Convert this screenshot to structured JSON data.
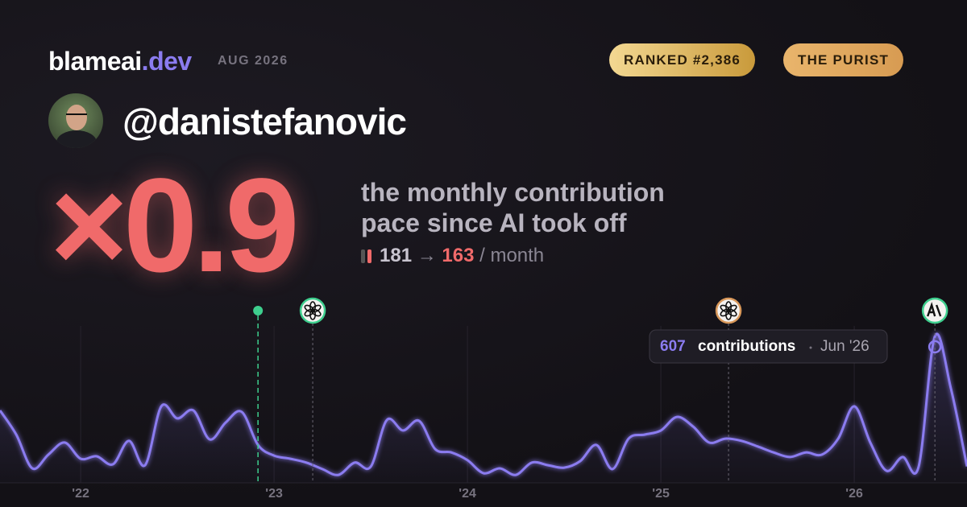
{
  "header": {
    "brand": "blameai",
    "brand_tld": ".dev",
    "period": "AUG 2026",
    "badges": [
      "RANKED #2,386",
      "THE PURIST"
    ],
    "username": "@danistefanovic"
  },
  "stats": {
    "multiplier": "×0.9",
    "description": [
      "the monthly contribution",
      "pace since AI took off"
    ],
    "before": 181,
    "arrow": "→",
    "after": 163,
    "unit": "/ month"
  },
  "chart_data": {
    "type": "line",
    "x": [
      2021.583,
      2021.667,
      2021.75,
      2021.833,
      2021.917,
      2022,
      2022.083,
      2022.167,
      2022.25,
      2022.333,
      2022.417,
      2022.5,
      2022.583,
      2022.667,
      2022.75,
      2022.833,
      2022.917,
      2023,
      2023.083,
      2023.167,
      2023.25,
      2023.333,
      2023.417,
      2023.5,
      2023.583,
      2023.667,
      2023.75,
      2023.833,
      2023.917,
      2024,
      2024.083,
      2024.167,
      2024.25,
      2024.333,
      2024.417,
      2024.5,
      2024.583,
      2024.667,
      2024.75,
      2024.833,
      2024.917,
      2025,
      2025.083,
      2025.167,
      2025.25,
      2025.333,
      2025.417,
      2025.5,
      2025.583,
      2025.667,
      2025.75,
      2025.833,
      2025.917,
      2026,
      2026.083,
      2026.167,
      2026.25,
      2026.333,
      2026.417,
      2026.5,
      2026.583
    ],
    "series": [
      {
        "color": "#8b7cf0",
        "values": [
          300,
          200,
          60,
          117,
          167,
          100,
          110,
          77,
          174,
          73,
          317,
          267,
          300,
          180,
          250,
          294,
          157,
          113,
          100,
          84,
          57,
          33,
          84,
          67,
          260,
          217,
          257,
          140,
          126,
          94,
          40,
          60,
          33,
          84,
          73,
          63,
          90,
          157,
          57,
          183,
          200,
          217,
          273,
          233,
          167,
          183,
          174,
          151,
          126,
          107,
          126,
          117,
          183,
          317,
          167,
          50,
          107,
          67,
          607,
          390,
          68
        ]
      }
    ],
    "xlim": [
      2021.583,
      2026.583
    ],
    "ylim": [
      0,
      680
    ],
    "xticks": [
      {
        "value": 2022,
        "label": "'22"
      },
      {
        "value": 2023,
        "label": "'23"
      },
      {
        "value": 2024,
        "label": "'24"
      },
      {
        "value": 2025,
        "label": "'25"
      },
      {
        "value": 2026,
        "label": "'26"
      }
    ],
    "grid": true,
    "events": [
      {
        "x": 2022.917,
        "color": "#3ecf8e",
        "icon": "dot"
      },
      {
        "x": 2023.2,
        "color": "#3ecf8e",
        "icon": "openai"
      },
      {
        "x": 2025.35,
        "color": "#d9985a",
        "icon": "openai"
      },
      {
        "x": 2026.417,
        "color": "#3ecf8e",
        "icon": "anthropic"
      }
    ],
    "tooltip": {
      "value": 607,
      "label": "contributions",
      "date": "Jun '26"
    }
  }
}
